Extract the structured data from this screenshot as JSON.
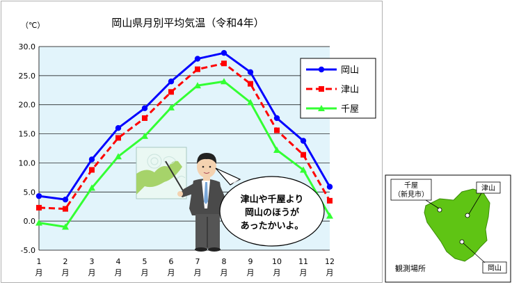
{
  "chart_data": {
    "type": "line",
    "title": "岡山県月別平均気温（令和4年）",
    "ylabel": "（℃）",
    "xlabel": "",
    "categories": [
      "1",
      "2",
      "3",
      "4",
      "5",
      "6",
      "7",
      "8",
      "9",
      "10",
      "11",
      "12"
    ],
    "month_suffix": "月",
    "ylim": [
      -5,
      30
    ],
    "yticks": [
      "30.0",
      "25.0",
      "20.0",
      "15.0",
      "10.0",
      "5.0",
      "0.0",
      "-5.0"
    ],
    "grid": true,
    "legend_position": "top-right",
    "series": [
      {
        "name": "岡山",
        "color": "#0000ff",
        "dash": "solid",
        "marker": "circle",
        "values": [
          4.3,
          3.7,
          10.6,
          16.0,
          19.4,
          24.0,
          27.9,
          28.9,
          25.6,
          17.7,
          13.8,
          5.9
        ]
      },
      {
        "name": "津山",
        "color": "#ff0000",
        "dash": "dashed",
        "marker": "square",
        "values": [
          2.3,
          2.1,
          8.8,
          14.3,
          17.7,
          22.2,
          26.1,
          27.1,
          23.6,
          15.6,
          11.4,
          3.5
        ]
      },
      {
        "name": "千屋",
        "color": "#33ff33",
        "dash": "solid",
        "marker": "triangle",
        "values": [
          -0.3,
          -1.0,
          5.7,
          11.1,
          14.6,
          19.5,
          23.3,
          24.0,
          20.4,
          12.2,
          8.8,
          0.9
        ]
      }
    ]
  },
  "speech": {
    "line1": "津山や千屋より",
    "line2": "岡山のほうが",
    "line3": "あったかいよ。"
  },
  "map": {
    "chiya_label": "千屋",
    "chiya_sub": "（新見市）",
    "tsuyama_label": "津山",
    "okayama_label": "岡山",
    "caption": "観測場所"
  },
  "colors": {
    "plot_bg": "#e2f4fb",
    "map_land": "#5fc414",
    "suit": "#4a4a4a"
  }
}
